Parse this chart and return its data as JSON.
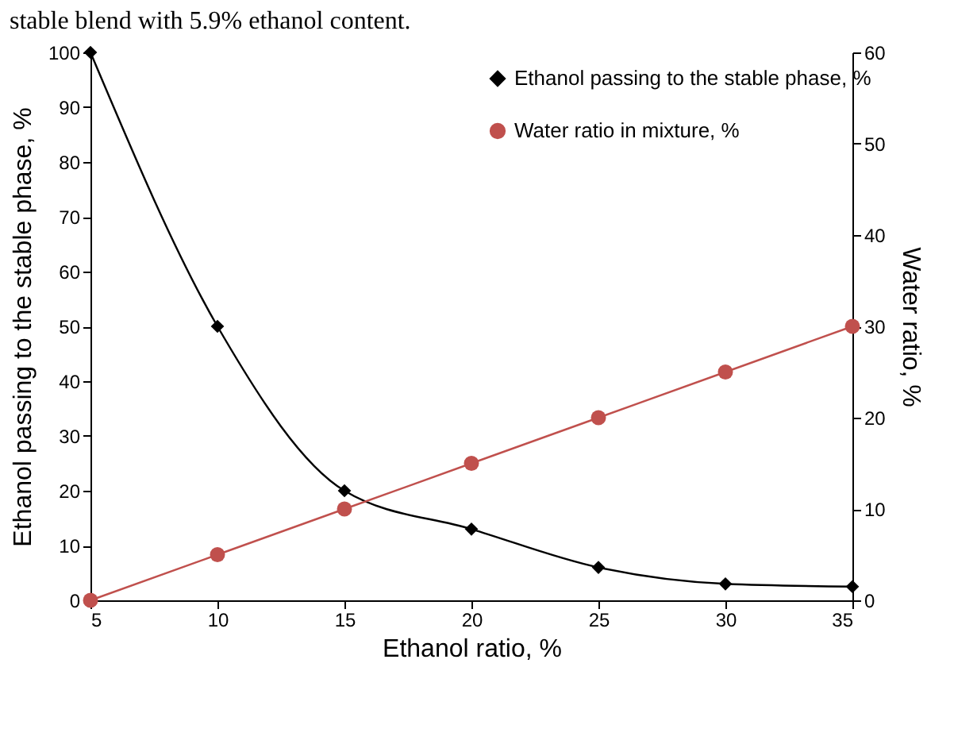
{
  "chart_data": {
    "type": "line",
    "title": "stable blend with 5.9% ethanol content.",
    "xlabel": "Ethanol ratio, %",
    "ylabel": "Ethanol passing to the stable phase, %",
    "y2label": "Water ratio, %",
    "x": [
      5,
      10,
      15,
      20,
      25,
      30,
      35
    ],
    "series": [
      {
        "name": "Ethanol passing to the stable phase, %",
        "color": "#000000",
        "marker": "diamond",
        "values": [
          100,
          50,
          20,
          13,
          6,
          3,
          2.5
        ]
      },
      {
        "name": "Water ratio in mixture, %",
        "color": "#c0504d",
        "marker": "circle",
        "axis": "y2",
        "values": [
          0,
          5,
          10,
          15,
          20,
          25,
          30
        ]
      }
    ],
    "xlim": [
      5,
      35
    ],
    "xticks": [
      5,
      10,
      15,
      20,
      25,
      30,
      35
    ],
    "ylim": [
      0,
      100
    ],
    "yticks": [
      0,
      10,
      20,
      30,
      40,
      50,
      60,
      70,
      80,
      90,
      100
    ],
    "y2lim": [
      0,
      60
    ],
    "y2ticks": [
      0,
      10,
      20,
      30,
      40,
      50,
      60
    ],
    "legend": "top right",
    "grid": false,
    "line_style": "solid"
  }
}
